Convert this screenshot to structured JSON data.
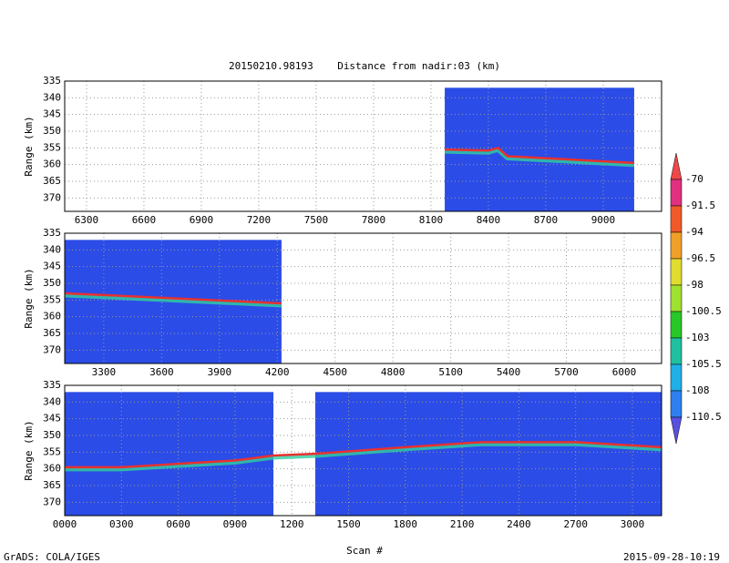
{
  "title": "20150210.98193    Distance from nadir:03 (km)",
  "xlabel": "Scan #",
  "footer_left": "GrADS: COLA/IGES",
  "footer_right": "2015-09-28-10:19",
  "colorbar": {
    "levels": [
      -70,
      -91.5,
      -94,
      -96.5,
      -98,
      -100.5,
      -103,
      -105.5,
      -108,
      -110.5
    ],
    "colors": [
      "#f04848",
      "#e0307f",
      "#f05a28",
      "#f0a028",
      "#e0dc30",
      "#a0e030",
      "#28c828",
      "#20c0a0",
      "#20b0e8",
      "#2e80f0",
      "#5a50e0"
    ]
  },
  "chart_data": [
    {
      "type": "heatmap",
      "ylabel": "Range (km)",
      "y_inverted": true,
      "grid": true,
      "fill_color": "#2b4ce6",
      "line_color": "#e83030",
      "xlim": [
        6186,
        9305
      ],
      "ylim": [
        335,
        374
      ],
      "xticks": [
        6300,
        6600,
        6900,
        7200,
        7500,
        7800,
        8100,
        8400,
        8700,
        9000
      ],
      "yticks": [
        335,
        340,
        345,
        350,
        355,
        360,
        365,
        370
      ],
      "blocks": [
        {
          "x": [
            8172,
            9162
          ],
          "top": 337
        }
      ],
      "surface": {
        "x": [
          8172,
          8400,
          8450,
          8500,
          9162
        ],
        "y": [
          355.5,
          355.8,
          355,
          357.5,
          359.5
        ]
      }
    },
    {
      "type": "heatmap",
      "ylabel": "Range (km)",
      "y_inverted": true,
      "grid": true,
      "fill_color": "#2b4ce6",
      "line_color": "#e83030",
      "xlim": [
        3097,
        6194
      ],
      "ylim": [
        335,
        374
      ],
      "xticks": [
        3300,
        3600,
        3900,
        4200,
        4500,
        4800,
        5100,
        5400,
        5700,
        6000
      ],
      "yticks": [
        335,
        340,
        345,
        350,
        355,
        360,
        365,
        370
      ],
      "blocks": [
        {
          "x": [
            3097,
            4222
          ],
          "top": 337
        }
      ],
      "surface": {
        "x": [
          3097,
          3300,
          4222
        ],
        "y": [
          353,
          353.5,
          356
        ]
      }
    },
    {
      "type": "heatmap",
      "ylabel": "Range (km)",
      "y_inverted": true,
      "grid": true,
      "fill_color": "#2b4ce6",
      "line_color": "#e83030",
      "xlim": [
        0,
        3154
      ],
      "ylim": [
        335,
        374
      ],
      "xticks": [
        {
          "value": 0,
          "label": "0000"
        },
        {
          "value": 300,
          "label": "0300"
        },
        {
          "value": 600,
          "label": "0600"
        },
        {
          "value": 900,
          "label": "0900"
        },
        1200,
        1500,
        1800,
        2100,
        2400,
        2700,
        3000
      ],
      "yticks": [
        335,
        340,
        345,
        350,
        355,
        360,
        365,
        370
      ],
      "blocks": [
        {
          "x": [
            0,
            1103
          ],
          "top": 337
        },
        {
          "x": [
            1324,
            3154
          ],
          "top": 337
        }
      ],
      "surface": {
        "x": [
          0,
          300,
          600,
          900,
          1103,
          1324,
          1800,
          2200,
          2700,
          3154
        ],
        "y": [
          359.5,
          359.5,
          358.5,
          357.5,
          356,
          355.5,
          353.5,
          352,
          352,
          353.5
        ]
      }
    }
  ]
}
